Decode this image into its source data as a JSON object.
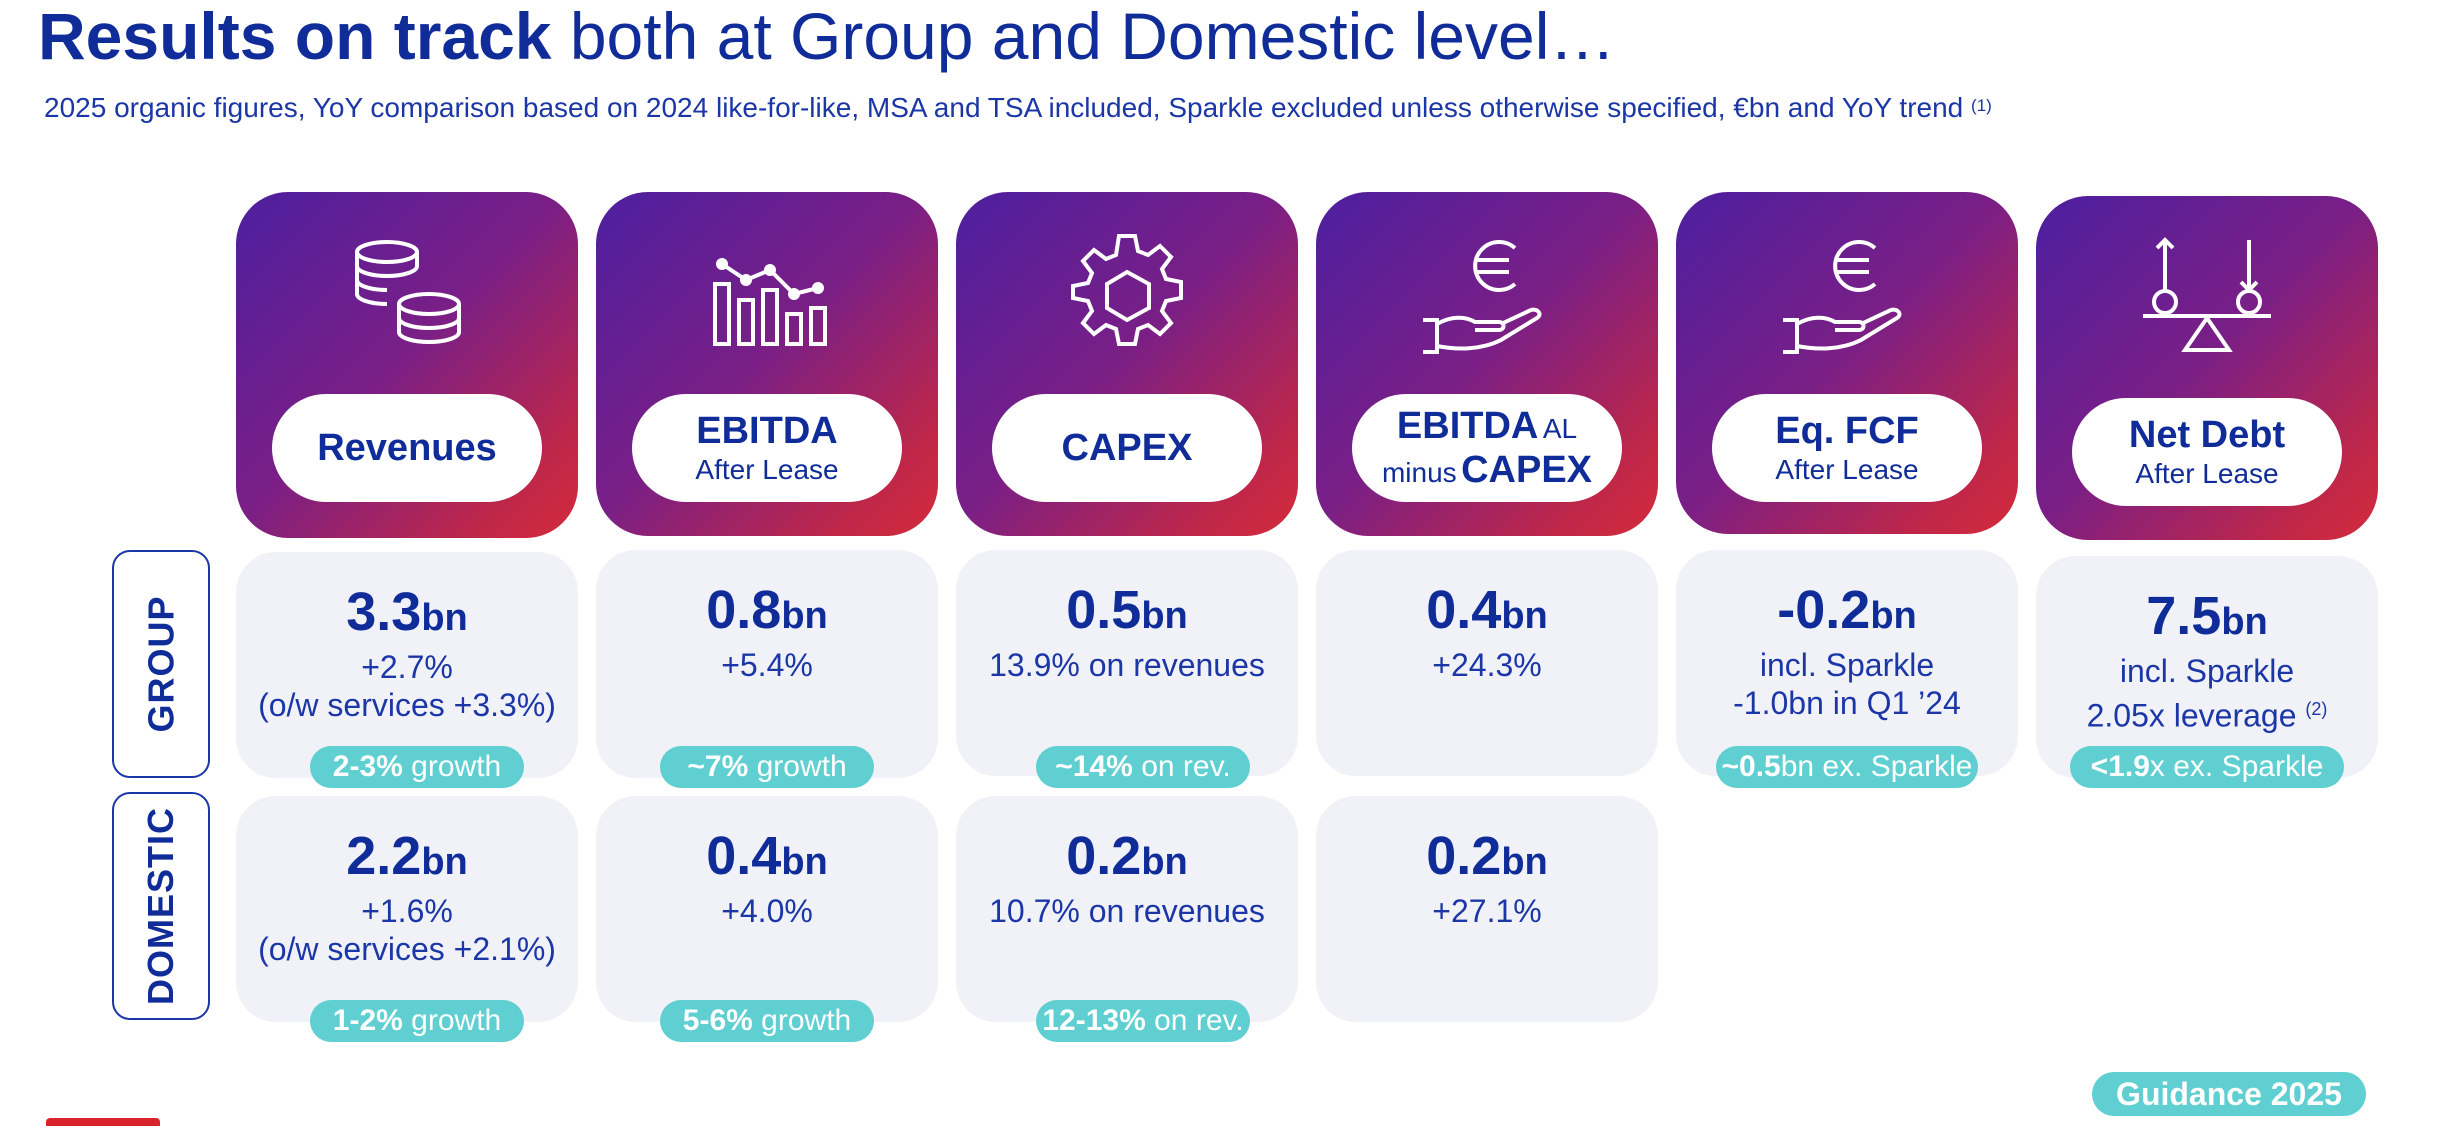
{
  "title": {
    "bold": "Results on track",
    "rest": "both at Group and Domestic level…"
  },
  "subtitle": {
    "text": "2025 organic figures, YoY comparison based on 2024 like-for-like, MSA and TSA included, Sparkle excluded unless otherwise specified, €bn and YoY trend",
    "note": "(1)"
  },
  "row_labels": {
    "group": "GROUP",
    "domestic": "DOMESTIC"
  },
  "cards": [
    {
      "icon": "coins-icon",
      "main": "Revenues",
      "sub": ""
    },
    {
      "icon": "bar-chart-icon",
      "main": "EBITDA",
      "sub": "After Lease"
    },
    {
      "icon": "gear-icon",
      "main": "CAPEX",
      "sub": ""
    },
    {
      "icon": "euro-hand-icon",
      "line1_main": "EBITDA",
      "line1_small": "AL",
      "line2_small": "minus",
      "line2_main": "CAPEX"
    },
    {
      "icon": "euro-hand-icon",
      "main": "Eq. FCF",
      "sub": "After Lease"
    },
    {
      "icon": "balance-scale-icon",
      "main": "Net Debt",
      "sub": "After Lease"
    }
  ],
  "group": [
    {
      "value": "3.3",
      "unit": "bn",
      "lines": [
        "+2.7%",
        "(o/w services +3.3%)"
      ],
      "badge_bold": "2-3%",
      "badge_rest": "growth"
    },
    {
      "value": "0.8",
      "unit": "bn",
      "lines": [
        "+5.4%"
      ],
      "badge_bold": "~7%",
      "badge_rest": "growth"
    },
    {
      "value": "0.5",
      "unit": "bn",
      "lines": [
        "13.9% on revenues"
      ],
      "badge_bold": "~14%",
      "badge_rest": "on rev."
    },
    {
      "value": "0.4",
      "unit": "bn",
      "lines": [
        "+24.3%"
      ]
    },
    {
      "value": "-0.2",
      "unit": "bn",
      "lines": [
        "incl. Sparkle",
        "-1.0bn in Q1 ’24"
      ],
      "badge_bold": "~0.5",
      "badge_rest": "bn ex. Sparkle"
    },
    {
      "value": "7.5",
      "unit": "bn",
      "lines": [
        "incl. Sparkle",
        "2.05x leverage"
      ],
      "note": "(2)",
      "badge_bold": "<1.9",
      "badge_rest": "x ex. Sparkle"
    }
  ],
  "domestic": [
    {
      "value": "2.2",
      "unit": "bn",
      "lines": [
        "+1.6%",
        "(o/w services +2.1%)"
      ],
      "badge_bold": "1-2%",
      "badge_rest": "growth"
    },
    {
      "value": "0.4",
      "unit": "bn",
      "lines": [
        "+4.0%"
      ],
      "badge_bold": "5-6%",
      "badge_rest": "growth"
    },
    {
      "value": "0.2",
      "unit": "bn",
      "lines": [
        "10.7% on revenues"
      ],
      "badge_bold": "12-13%",
      "badge_rest": "on rev."
    },
    {
      "value": "0.2",
      "unit": "bn",
      "lines": [
        "+27.1%"
      ]
    }
  ],
  "guidance_label": "Guidance 2025",
  "colors": {
    "navy": "#0f2c99",
    "teal": "#5fcfd1",
    "tile": "#f1f2f8",
    "red": "#d8232a",
    "purple": "#4d1fa0"
  }
}
